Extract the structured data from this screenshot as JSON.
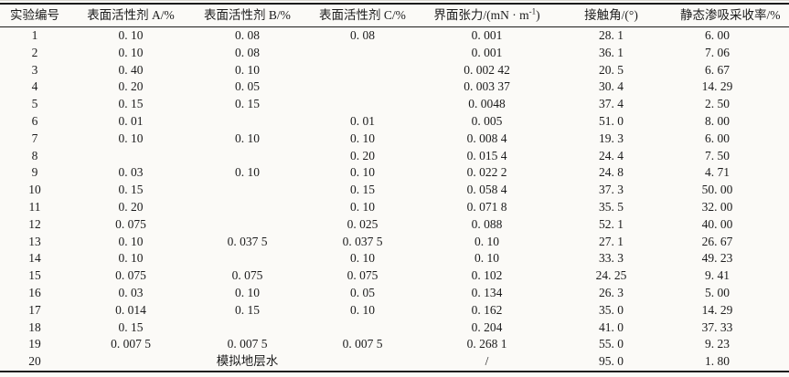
{
  "page": {
    "background": "#fbfaf7",
    "text_color": "#1b1b1b",
    "rule_color": "#1c1c1c"
  },
  "table": {
    "columns": [
      {
        "id": "exp-no",
        "label": "实验编号"
      },
      {
        "id": "surfactant-a",
        "label": "表面活性剂 A/%"
      },
      {
        "id": "surfactant-b",
        "label": "表面活性剂 B/%"
      },
      {
        "id": "surfactant-c",
        "label": "表面活性剂 C/%"
      },
      {
        "id": "interfacial-tension",
        "label_pre": "界面张力/(mN · m",
        "label_sup": "-1",
        "label_post": ")"
      },
      {
        "id": "contact-angle",
        "label": "接触角/(°)"
      },
      {
        "id": "recovery",
        "label": "静态渗吸采收率/%"
      }
    ],
    "rows": [
      [
        "1",
        "0. 10",
        "0. 08",
        "0. 08",
        "0. 001",
        "28. 1",
        "6. 00"
      ],
      [
        "2",
        "0. 10",
        "0. 08",
        "",
        "0. 001",
        "36. 1",
        "7. 06"
      ],
      [
        "3",
        "0. 40",
        "0. 10",
        "",
        "0. 002 42",
        "20. 5",
        "6. 67"
      ],
      [
        "4",
        "0. 20",
        "0. 05",
        "",
        "0. 003 37",
        "30. 4",
        "14. 29"
      ],
      [
        "5",
        "0. 15",
        "0. 15",
        "",
        "0. 0048",
        "37. 4",
        "2. 50"
      ],
      [
        "6",
        "0. 01",
        "",
        "0. 01",
        "0. 005",
        "51. 0",
        "8. 00"
      ],
      [
        "7",
        "0. 10",
        "0. 10",
        "0. 10",
        "0. 008 4",
        "19. 3",
        "6. 00"
      ],
      [
        "8",
        "",
        "",
        "0. 20",
        "0. 015 4",
        "24. 4",
        "7. 50"
      ],
      [
        "9",
        "0. 03",
        "0. 10",
        "0. 10",
        "0. 022 2",
        "24. 8",
        "4. 71"
      ],
      [
        "10",
        "0. 15",
        "",
        "0. 15",
        "0. 058 4",
        "37. 3",
        "50. 00"
      ],
      [
        "11",
        "0. 20",
        "",
        "0. 10",
        "0. 071 8",
        "35. 5",
        "32. 00"
      ],
      [
        "12",
        "0. 075",
        "",
        "0. 025",
        "0. 088",
        "52. 1",
        "40. 00"
      ],
      [
        "13",
        "0. 10",
        "0. 037 5",
        "0. 037 5",
        "0. 10",
        "27. 1",
        "26. 67"
      ],
      [
        "14",
        "0. 10",
        "",
        "0. 10",
        "0. 10",
        "33. 3",
        "49. 23"
      ],
      [
        "15",
        "0. 075",
        "0. 075",
        "0. 075",
        "0. 102",
        "24. 25",
        "9. 41"
      ],
      [
        "16",
        "0. 03",
        "0. 10",
        "0. 05",
        "0. 134",
        "26. 3",
        "5. 00"
      ],
      [
        "17",
        "0. 014",
        "0. 15",
        "0. 10",
        "0. 162",
        "35. 0",
        "14. 29"
      ],
      [
        "18",
        "0. 15",
        "",
        "",
        "0. 204",
        "41. 0",
        "37. 33"
      ],
      [
        "19",
        "0. 007 5",
        "0. 007 5",
        "0. 007 5",
        "0. 268 1",
        "55. 0",
        "9. 23"
      ],
      [
        "20",
        "",
        "模拟地层水",
        "",
        "/",
        "95. 0",
        "1. 80"
      ]
    ]
  }
}
